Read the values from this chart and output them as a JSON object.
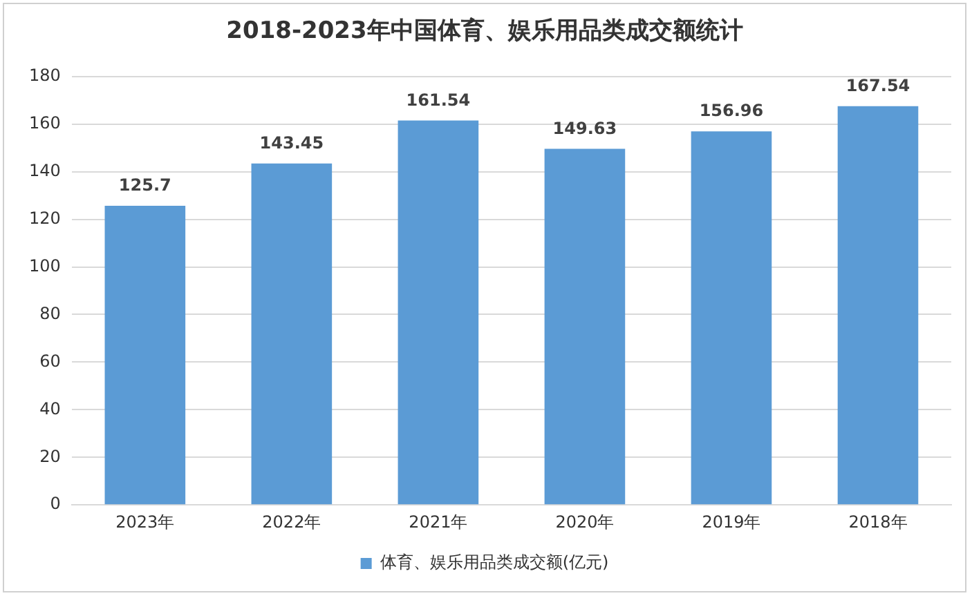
{
  "chart_data": {
    "type": "bar",
    "title": "2018-2023年中国体育、娱乐用品类成交额统计",
    "categories": [
      "2023年",
      "2022年",
      "2021年",
      "2020年",
      "2019年",
      "2018年"
    ],
    "series": [
      {
        "name": "体育、娱乐用品类成交额(亿元)",
        "color": "#5b9bd5",
        "values": [
          125.7,
          143.45,
          161.54,
          149.63,
          156.96,
          167.54
        ]
      }
    ],
    "ylim": [
      0,
      180
    ],
    "yticks": [
      0,
      20,
      40,
      60,
      80,
      100,
      120,
      140,
      160,
      180
    ],
    "grid": "y",
    "legend": "bottom",
    "data_labels": true
  }
}
